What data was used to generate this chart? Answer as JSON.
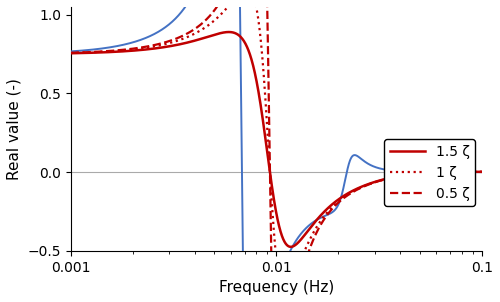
{
  "xlabel": "Frequency (Hz)",
  "ylabel": "Real value (-)",
  "xlim": [
    0.001,
    0.1
  ],
  "ylim": [
    -0.5,
    1.05
  ],
  "yticks": [
    -0.5,
    0,
    0.5,
    1
  ],
  "xticks": [
    0.001,
    0.01,
    0.1
  ],
  "blue_color": "#4472C4",
  "red_color": "#C00000",
  "gray_color": "#AAAAAA",
  "legend_entries": [
    "1.5 ζ",
    "1 ζ",
    "0.5 ζ"
  ],
  "red_f0": 0.0093,
  "red_zeta_scale": [
    0.3,
    0.2,
    0.1
  ],
  "blue_f0_1": 0.0068,
  "blue_f0_2": 0.022,
  "blue_zeta1": 0.09,
  "blue_zeta2": 0.12,
  "dc_level": 0.75,
  "high_freq_rolloff_f": 0.055
}
